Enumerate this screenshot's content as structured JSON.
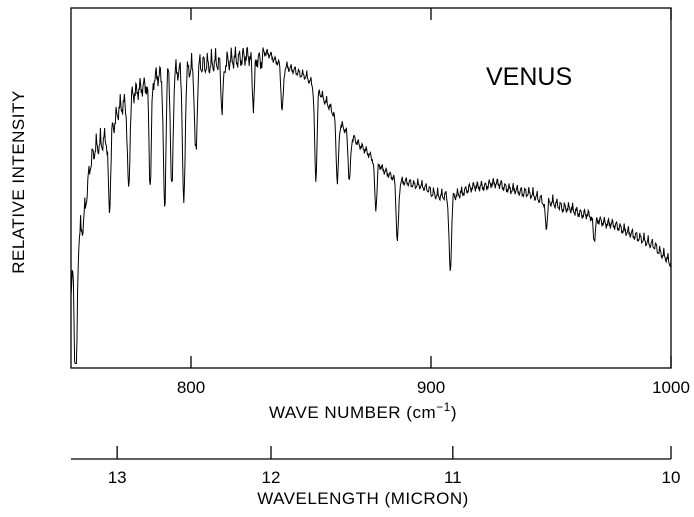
{
  "chart_data": {
    "type": "line",
    "title": "",
    "annotation": "VENUS",
    "xlabel": "WAVE NUMBER (cm",
    "xlabel_sup": "−1",
    "xlabel_close": ")",
    "ylabel": "RELATIVE INTENSITY",
    "xlim": [
      750,
      1000
    ],
    "x_ticks": [
      800,
      900,
      1000
    ],
    "x_tick_labels": [
      "800",
      "900",
      "1000"
    ],
    "y_ticks_visible": false,
    "grid": false,
    "secondary_axis": {
      "label": "WAVELENGTH (MICRON)",
      "ticks": [
        13,
        12,
        11,
        10
      ],
      "tick_labels": [
        "13",
        "12",
        "11",
        "10"
      ]
    },
    "series": [
      {
        "x": [
          750,
          752,
          755,
          758,
          760,
          763,
          765,
          768,
          770,
          773,
          775,
          778,
          780,
          783,
          785,
          788,
          790,
          793,
          795,
          798,
          800,
          803,
          805,
          808,
          810,
          813,
          815,
          818,
          820,
          823,
          825,
          828,
          830,
          833,
          835,
          838,
          840,
          843,
          845,
          848,
          850,
          853,
          855,
          858,
          860,
          863,
          865,
          868,
          870,
          873,
          875,
          878,
          880,
          883,
          885,
          888,
          890,
          893,
          895,
          898,
          900,
          903,
          905,
          908,
          910,
          913,
          915,
          918,
          920,
          923,
          925,
          928,
          930,
          933,
          935,
          938,
          940,
          943,
          945,
          948,
          950,
          953,
          955,
          958,
          960,
          963,
          965,
          968,
          970,
          973,
          975,
          978,
          980,
          983,
          985,
          988,
          990,
          993,
          995,
          998,
          1000
        ],
        "y": [
          0.25,
          0.4,
          0.45,
          0.65,
          0.7,
          0.72,
          0.74,
          0.78,
          0.83,
          0.85,
          0.87,
          0.89,
          0.9,
          0.91,
          0.93,
          0.94,
          0.95,
          0.95,
          0.95,
          0.95,
          0.96,
          0.97,
          0.97,
          0.97,
          0.98,
          0.98,
          0.98,
          0.99,
          0.99,
          1.0,
          1.0,
          0.99,
          0.98,
          0.97,
          0.95,
          0.94,
          0.93,
          0.92,
          0.91,
          0.9,
          0.88,
          0.86,
          0.83,
          0.8,
          0.77,
          0.74,
          0.72,
          0.7,
          0.68,
          0.66,
          0.64,
          0.62,
          0.6,
          0.58,
          0.57,
          0.56,
          0.56,
          0.55,
          0.55,
          0.54,
          0.53,
          0.52,
          0.52,
          0.52,
          0.52,
          0.53,
          0.54,
          0.55,
          0.55,
          0.55,
          0.56,
          0.56,
          0.55,
          0.54,
          0.54,
          0.53,
          0.53,
          0.52,
          0.51,
          0.5,
          0.5,
          0.49,
          0.48,
          0.48,
          0.47,
          0.46,
          0.46,
          0.45,
          0.44,
          0.43,
          0.43,
          0.42,
          0.41,
          0.4,
          0.39,
          0.38,
          0.37,
          0.36,
          0.34,
          0.32,
          0.3
        ]
      }
    ]
  }
}
